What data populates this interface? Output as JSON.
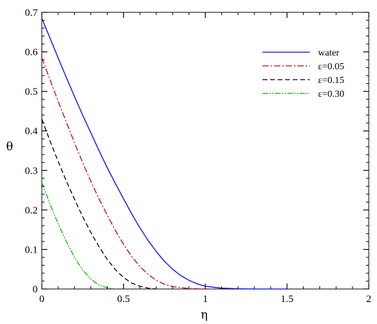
{
  "chart_data": {
    "type": "line",
    "xlabel": "η",
    "ylabel": "θ",
    "xlim": [
      0,
      2
    ],
    "ylim": [
      0,
      0.7
    ],
    "x_ticks": [
      {
        "value": 0,
        "label": "0"
      },
      {
        "value": 0.5,
        "label": "0.5"
      },
      {
        "value": 1,
        "label": "1"
      },
      {
        "value": 1.5,
        "label": "1.5"
      },
      {
        "value": 2,
        "label": "2"
      }
    ],
    "y_ticks": [
      {
        "value": 0,
        "label": "0"
      },
      {
        "value": 0.1,
        "label": "0.1"
      },
      {
        "value": 0.2,
        "label": "0.2"
      },
      {
        "value": 0.3,
        "label": "0.3"
      },
      {
        "value": 0.4,
        "label": "0.4"
      },
      {
        "value": 0.5,
        "label": "0.5"
      },
      {
        "value": 0.6,
        "label": "0.6"
      },
      {
        "value": 0.7,
        "label": "0.7"
      }
    ],
    "grid": false,
    "legend_position": "top-right",
    "series": [
      {
        "name": "water",
        "color": "#0000ff",
        "dash": "solid",
        "points": [
          [
            0,
            0.685
          ],
          [
            0.05,
            0.635
          ],
          [
            0.1,
            0.585
          ],
          [
            0.15,
            0.535
          ],
          [
            0.2,
            0.487
          ],
          [
            0.25,
            0.44
          ],
          [
            0.3,
            0.395
          ],
          [
            0.35,
            0.35
          ],
          [
            0.4,
            0.307
          ],
          [
            0.45,
            0.267
          ],
          [
            0.5,
            0.228
          ],
          [
            0.55,
            0.19
          ],
          [
            0.6,
            0.155
          ],
          [
            0.65,
            0.123
          ],
          [
            0.7,
            0.095
          ],
          [
            0.75,
            0.07
          ],
          [
            0.8,
            0.05
          ],
          [
            0.85,
            0.034
          ],
          [
            0.9,
            0.022
          ],
          [
            0.95,
            0.013
          ],
          [
            1.0,
            0.007
          ],
          [
            1.1,
            0.002
          ],
          [
            1.2,
            0.0005
          ],
          [
            1.3,
            0.0
          ],
          [
            1.5,
            0.0
          ]
        ]
      },
      {
        "name": "ε=0.05",
        "color": "#cc0000",
        "dash": "dashdot",
        "points": [
          [
            0,
            0.585
          ],
          [
            0.05,
            0.53
          ],
          [
            0.1,
            0.475
          ],
          [
            0.15,
            0.422
          ],
          [
            0.2,
            0.37
          ],
          [
            0.25,
            0.32
          ],
          [
            0.3,
            0.272
          ],
          [
            0.35,
            0.228
          ],
          [
            0.4,
            0.187
          ],
          [
            0.45,
            0.148
          ],
          [
            0.5,
            0.113
          ],
          [
            0.55,
            0.082
          ],
          [
            0.6,
            0.057
          ],
          [
            0.65,
            0.037
          ],
          [
            0.7,
            0.022
          ],
          [
            0.75,
            0.012
          ],
          [
            0.8,
            0.006
          ],
          [
            0.9,
            0.001
          ],
          [
            1.0,
            0.0
          ]
        ]
      },
      {
        "name": "ε=0.15",
        "color": "#000000",
        "dash": "dash",
        "points": [
          [
            0,
            0.43
          ],
          [
            0.05,
            0.375
          ],
          [
            0.1,
            0.323
          ],
          [
            0.15,
            0.273
          ],
          [
            0.2,
            0.227
          ],
          [
            0.25,
            0.183
          ],
          [
            0.3,
            0.143
          ],
          [
            0.35,
            0.107
          ],
          [
            0.4,
            0.075
          ],
          [
            0.45,
            0.049
          ],
          [
            0.5,
            0.029
          ],
          [
            0.55,
            0.015
          ],
          [
            0.6,
            0.007
          ],
          [
            0.65,
            0.002
          ],
          [
            0.7,
            0.0
          ]
        ]
      },
      {
        "name": "ε=0.30",
        "color": "#00bb00",
        "dash": "dashdotdot",
        "points": [
          [
            0,
            0.27
          ],
          [
            0.05,
            0.215
          ],
          [
            0.1,
            0.165
          ],
          [
            0.15,
            0.12
          ],
          [
            0.2,
            0.08
          ],
          [
            0.25,
            0.048
          ],
          [
            0.3,
            0.025
          ],
          [
            0.35,
            0.01
          ],
          [
            0.4,
            0.003
          ],
          [
            0.45,
            0.0
          ]
        ]
      }
    ]
  }
}
